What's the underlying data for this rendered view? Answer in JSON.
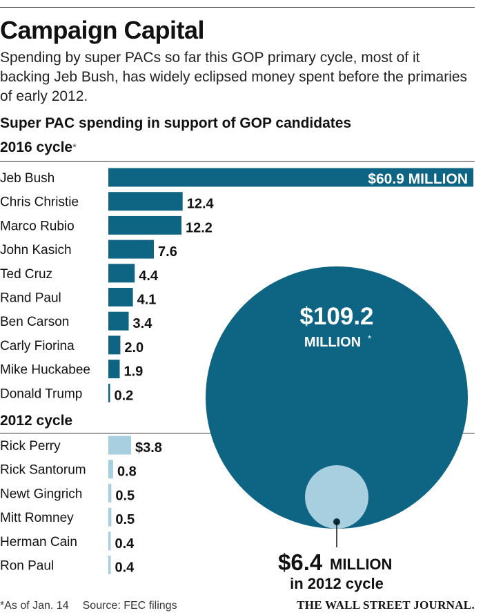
{
  "title": "Campaign Capital",
  "subtitle": "Spending by super PACs so far this GOP primary cycle, most of it backing Jeb Bush, has widely eclipsed money spent before the primaries of early 2012.",
  "chart_heading": "Super PAC spending in support of GOP candidates",
  "footnote": "*As of Jan. 14",
  "source": "Source: FEC filings",
  "brand": "THE WALL STREET JOURNAL.",
  "colors": {
    "primary": "#0e6583",
    "secondary": "#a7cfdf"
  },
  "chart_data": [
    {
      "type": "bar",
      "orientation": "horizontal",
      "section": "2016 cycle",
      "section_marker": "*",
      "unit": "million dollars",
      "categories": [
        "Jeb Bush",
        "Chris Christie",
        "Marco Rubio",
        "John Kasich",
        "Ted Cruz",
        "Rand Paul",
        "Ben Carson",
        "Carly Fiorina",
        "Mike Huckabee",
        "Donald Trump"
      ],
      "values": [
        60.9,
        12.4,
        12.2,
        7.6,
        4.4,
        4.1,
        3.4,
        2.0,
        1.9,
        0.2
      ],
      "value_labels": [
        "$60.9 MILLION",
        "12.4",
        "12.2",
        "7.6",
        "4.4",
        "4.1",
        "3.4",
        "2.0",
        "1.9",
        "0.2"
      ],
      "color": "#0e6583"
    },
    {
      "type": "bar",
      "orientation": "horizontal",
      "section": "2012 cycle",
      "unit": "million dollars",
      "categories": [
        "Rick Perry",
        "Rick Santorum",
        "Newt Gingrich",
        "Mitt Romney",
        "Herman Cain",
        "Ron Paul"
      ],
      "values": [
        3.8,
        0.8,
        0.5,
        0.5,
        0.4,
        0.4
      ],
      "value_labels": [
        "$3.8",
        "0.8",
        "0.5",
        "0.5",
        "0.4",
        "0.4"
      ],
      "color": "#a7cfdf"
    },
    {
      "type": "bubble",
      "unit": "million dollars",
      "circles": [
        {
          "value": 109.2,
          "label_amount": "$109.2",
          "label_unit": "MILLION",
          "label_marker": "*",
          "color": "#0e6583"
        },
        {
          "value": 6.4,
          "label_amount": "$6.4",
          "label_unit": "MILLION",
          "label_note": "in 2012 cycle",
          "color": "#a7cfdf"
        }
      ]
    }
  ]
}
